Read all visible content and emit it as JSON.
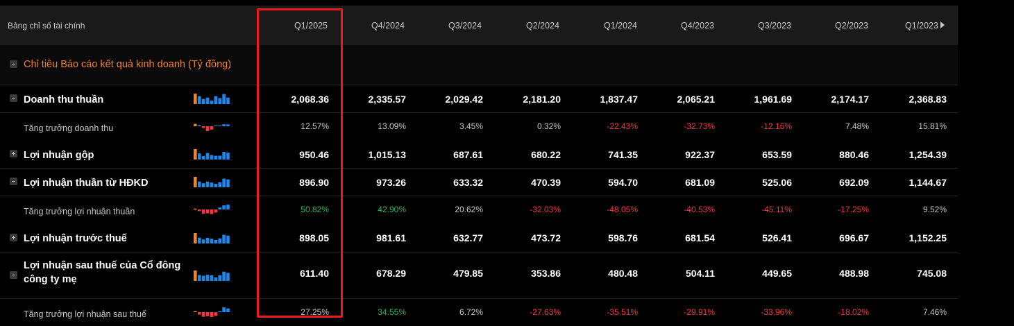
{
  "header": {
    "label": "Bảng chỉ số tài chính",
    "periods": [
      "Q1/2025",
      "Q4/2024",
      "Q3/2024",
      "Q2/2024",
      "Q1/2024",
      "Q4/2023",
      "Q3/2023",
      "Q2/2023",
      "Q1/2023"
    ]
  },
  "section": {
    "title": "Chỉ tiêu Báo cáo kết quả kinh doanh (Tỷ đồng)"
  },
  "rows": [
    {
      "name": "Doanh thu thuần",
      "toggle": "minus",
      "sub": false,
      "values": [
        "2,068.36",
        "2,335.57",
        "2,029.42",
        "2,181.20",
        "1,837.47",
        "2,065.21",
        "1,961.69",
        "2,174.17",
        "2,368.83"
      ]
    },
    {
      "name": "Tăng trưởng doanh thu",
      "sub": true,
      "values": [
        "12.57%",
        "13.09%",
        "3.45%",
        "0.32%",
        "-22.43%",
        "-32.73%",
        "-12.16%",
        "7.48%",
        "15.81%"
      ]
    },
    {
      "name": "Lợi nhuận gộp",
      "toggle": "plus",
      "sub": false,
      "values": [
        "950.46",
        "1,015.13",
        "687.61",
        "680.22",
        "741.35",
        "922.37",
        "653.59",
        "880.46",
        "1,254.39"
      ]
    },
    {
      "name": "Lợi nhuận thuần từ HĐKD",
      "toggle": "minus",
      "sub": false,
      "values": [
        "896.90",
        "973.26",
        "633.32",
        "470.39",
        "594.70",
        "681.09",
        "525.06",
        "692.09",
        "1,144.67"
      ]
    },
    {
      "name": "Tăng trưởng lợi nhuận thuần",
      "sub": true,
      "values": [
        "50.82%",
        "42.90%",
        "20.62%",
        "-32.03%",
        "-48.05%",
        "-40.53%",
        "-45.11%",
        "-17.25%",
        "9.52%"
      ]
    },
    {
      "name": "Lợi nhuận trước thuế",
      "toggle": "plus",
      "sub": false,
      "values": [
        "898.05",
        "981.61",
        "632.77",
        "473.72",
        "598.76",
        "681.54",
        "526.41",
        "696.67",
        "1,152.25"
      ]
    },
    {
      "name": "Lợi nhuận sau thuế của Cổ đông công ty mẹ",
      "toggle": "minus",
      "sub": false,
      "values": [
        "611.40",
        "678.29",
        "479.85",
        "353.86",
        "480.48",
        "504.11",
        "449.65",
        "488.98",
        "745.08"
      ]
    },
    {
      "name": "Tăng trưởng lợi nhuận sau thuế",
      "sub": true,
      "values": [
        "27.25%",
        "34.55%",
        "6.72%",
        "-27.63%",
        "-35.51%",
        "-29.91%",
        "-33.96%",
        "-18.02%",
        "7.46%"
      ]
    }
  ],
  "colors": {
    "accent": "#f08228",
    "negative": "#f23645",
    "positive": "#2fb45a",
    "spark_recent": "#1e88e5",
    "spark_old": "#f08228",
    "spark_neg": "#f23645",
    "highlight": "#ee1c1c"
  }
}
